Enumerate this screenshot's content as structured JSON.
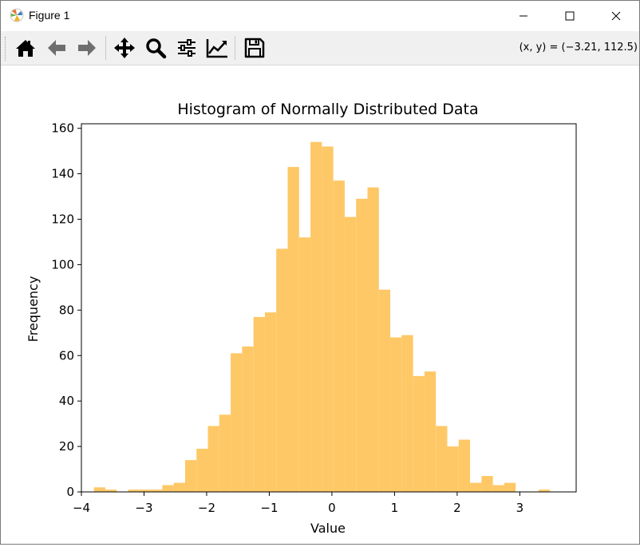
{
  "window": {
    "title": "Figure 1",
    "controls": [
      "minimize",
      "maximize",
      "close"
    ]
  },
  "toolbar": {
    "buttons": [
      {
        "name": "home",
        "icon": "home-icon"
      },
      {
        "name": "back",
        "icon": "arrow-left-icon"
      },
      {
        "name": "forward",
        "icon": "arrow-right-icon"
      },
      {
        "name": "pan",
        "icon": "move-icon"
      },
      {
        "name": "zoom",
        "icon": "magnifier-icon"
      },
      {
        "name": "configure-subplots",
        "icon": "sliders-icon"
      },
      {
        "name": "edit-axis",
        "icon": "line-chart-icon"
      },
      {
        "name": "save",
        "icon": "floppy-disk-icon"
      }
    ],
    "coords_text": "(x, y) = (−3.21, 112.5)"
  },
  "colors": {
    "bar": "#fec867",
    "axes": "#000000",
    "background": "#ffffff"
  },
  "chart_data": {
    "type": "bar",
    "title": "Histogram of Normally Distributed Data",
    "xlabel": "Value",
    "ylabel": "Frequency",
    "xlim": [
      -4.0,
      3.9
    ],
    "ylim": [
      0,
      162
    ],
    "xticks": [
      -4,
      -3,
      -2,
      -1,
      0,
      1,
      2,
      3
    ],
    "xtick_labels": [
      "−4",
      "−3",
      "−2",
      "−1",
      "0",
      "1",
      "2",
      "3"
    ],
    "yticks": [
      0,
      20,
      40,
      60,
      80,
      100,
      120,
      140,
      160
    ],
    "ytick_labels": [
      "0",
      "20",
      "40",
      "60",
      "80",
      "100",
      "120",
      "140",
      "160"
    ],
    "bin_start": -3.8,
    "bin_width": 0.182,
    "counts": [
      2,
      1,
      0,
      1,
      1,
      1,
      3,
      4,
      14,
      19,
      29,
      34,
      61,
      64,
      77,
      79,
      107,
      143,
      112,
      154,
      152,
      137,
      121,
      129,
      134,
      89,
      68,
      69,
      51,
      53,
      29,
      20,
      23,
      4,
      7,
      3,
      4,
      0,
      0,
      1
    ],
    "grid": false
  }
}
